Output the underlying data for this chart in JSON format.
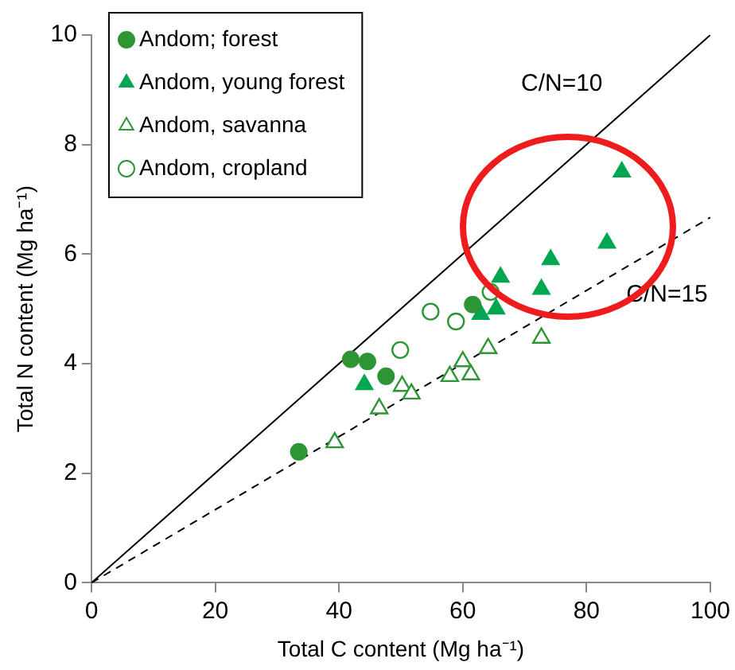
{
  "chart_data": {
    "type": "scatter",
    "xlabel": "Total C content (Mg ha⁻¹)",
    "ylabel": "Total N content (Mg ha⁻¹)",
    "xlim": [
      0,
      100
    ],
    "ylim": [
      0,
      10
    ],
    "xticks": [
      0,
      20,
      40,
      60,
      80,
      100
    ],
    "yticks": [
      0,
      2,
      4,
      6,
      8,
      10
    ],
    "grid": false,
    "legend": "top left",
    "series": [
      {
        "name": "Andom; forest",
        "color": "#2e9535",
        "marker": "circle",
        "x": [
          33.5,
          41.9,
          44.6,
          47.6,
          61.6
        ],
        "values": [
          2.39,
          4.08,
          4.04,
          3.77,
          5.08
        ]
      },
      {
        "name": "Andom, young forest",
        "color": "#00a650",
        "marker": "triangle",
        "x": [
          44.1,
          62.9,
          65.4,
          66.1,
          72.7,
          74.2,
          83.3,
          85.7
        ],
        "values": [
          3.62,
          4.9,
          5.0,
          5.58,
          5.36,
          5.9,
          6.2,
          7.5
        ]
      },
      {
        "name": "Andom, savanna",
        "color": "#2e9535",
        "marker": "triangle-open",
        "x": [
          39.3,
          46.5,
          50.2,
          51.7,
          57.9,
          60,
          61.3,
          64.1,
          72.7
        ],
        "values": [
          2.56,
          3.18,
          3.59,
          3.45,
          3.77,
          4.04,
          3.8,
          4.28,
          4.47
        ]
      },
      {
        "name": "Andom, cropland",
        "color": "#2e9535",
        "marker": "circle-open",
        "x": [
          49.9,
          54.8,
          58.9,
          64.5
        ],
        "values": [
          4.25,
          4.95,
          4.77,
          5.31
        ]
      },
      {
        "type": "line",
        "color": "#000000",
        "line_style": "solid",
        "marker": "none",
        "x": [
          0,
          100
        ],
        "values": [
          0,
          10
        ]
      },
      {
        "type": "line",
        "color": "#000000",
        "line_style": "dashed",
        "marker": "none",
        "x": [
          0,
          100
        ],
        "values": [
          0,
          6.67
        ]
      }
    ],
    "annotations": [
      "C/N=10",
      "C/N=15"
    ]
  }
}
